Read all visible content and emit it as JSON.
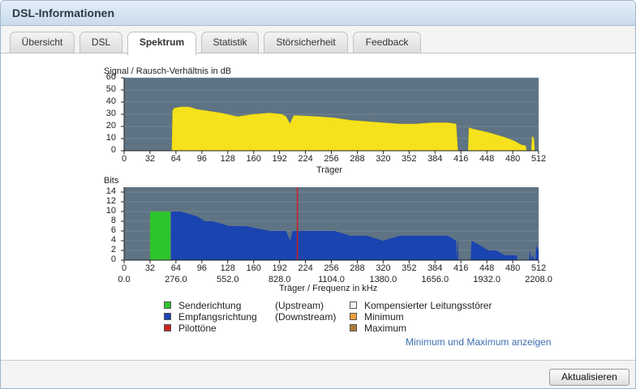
{
  "window": {
    "title": "DSL-Informationen"
  },
  "tabs": [
    {
      "label": "Übersicht",
      "active": false
    },
    {
      "label": "DSL",
      "active": false
    },
    {
      "label": "Spektrum",
      "active": true
    },
    {
      "label": "Statistik",
      "active": false
    },
    {
      "label": "Störsicherheit",
      "active": false
    },
    {
      "label": "Feedback",
      "active": false
    }
  ],
  "colors": {
    "plot_bg": "#5e7384",
    "snr_fill": "#f5e21c",
    "upstream": "#2ec42e",
    "downstream": "#1a44b0",
    "pilot": "#cc2222",
    "compensated": "#f4f4f4",
    "minimum": "#f0a040",
    "maximum": "#b07a3c"
  },
  "chart_data": [
    {
      "type": "area",
      "title": "Signal / Rausch-Verhältnis in dB",
      "xlabel": "Träger",
      "ylabel": "",
      "xlim": [
        0,
        512
      ],
      "ylim": [
        0,
        60
      ],
      "yticks": [
        0,
        10,
        20,
        30,
        40,
        50,
        60
      ],
      "xticks": [
        0,
        32,
        64,
        96,
        128,
        160,
        192,
        224,
        256,
        288,
        320,
        352,
        384,
        416,
        448,
        480,
        512
      ],
      "x": [
        0,
        59,
        60,
        62,
        70,
        80,
        90,
        100,
        120,
        140,
        160,
        180,
        195,
        200,
        205,
        208,
        210,
        240,
        260,
        280,
        300,
        320,
        340,
        360,
        380,
        400,
        410,
        412,
        413,
        425,
        426,
        430,
        450,
        470,
        482,
        490,
        496,
        497,
        503,
        504,
        506,
        507,
        512
      ],
      "y": [
        0,
        0,
        33,
        35,
        36,
        36,
        34,
        33,
        31,
        28,
        30,
        31,
        30,
        28,
        22,
        27,
        29,
        28,
        27,
        25,
        24,
        23,
        22,
        22,
        23,
        23,
        22,
        1,
        0,
        0,
        19,
        18,
        15,
        11,
        8,
        5,
        4,
        0,
        0,
        12,
        10,
        0,
        0
      ]
    },
    {
      "type": "area",
      "title": "Bits",
      "xlabel": "Träger / Frequenz in kHz",
      "ylabel": "",
      "xlim": [
        0,
        512
      ],
      "ylim": [
        0,
        15
      ],
      "yticks": [
        0,
        2,
        4,
        6,
        8,
        10,
        12,
        14
      ],
      "xticks": [
        0,
        32,
        64,
        96,
        128,
        160,
        192,
        224,
        256,
        288,
        320,
        352,
        384,
        416,
        448,
        480,
        512
      ],
      "freq_ticks": [
        "0.0",
        "276.0",
        "552.0",
        "828.0",
        "1104.0",
        "1380.0",
        "1656.0",
        "1932.0",
        "2208.0"
      ],
      "series": [
        {
          "name": "Senderichtung",
          "x": [
            32,
            32,
            57,
            57
          ],
          "y": [
            0,
            10,
            10,
            0
          ]
        },
        {
          "name": "Empfangsrichtung",
          "x": [
            58,
            58,
            70,
            90,
            100,
            110,
            130,
            150,
            180,
            200,
            205,
            208,
            212,
            230,
            260,
            280,
            300,
            320,
            340,
            360,
            380,
            400,
            410,
            411,
            412,
            413,
            414,
            428,
            429,
            440,
            450,
            460,
            470,
            480,
            485,
            486,
            500,
            501,
            503,
            504,
            508,
            509,
            512,
            512
          ],
          "y": [
            0,
            10,
            10,
            9,
            8,
            8,
            7,
            7,
            6,
            6,
            4,
            6,
            6,
            6,
            6,
            5,
            5,
            4,
            5,
            5,
            5,
            5,
            4,
            0,
            5,
            0,
            0,
            0,
            4,
            3,
            2,
            2,
            1,
            1,
            1,
            0,
            0,
            2,
            0,
            1,
            0,
            3,
            2,
            0
          ]
        },
        {
          "name": "Pilottöne",
          "x": [
            214
          ],
          "y": [
            15
          ]
        }
      ]
    }
  ],
  "legend": [
    {
      "label": "Senderichtung",
      "direction": "(Upstream)",
      "color": "#2ec42e"
    },
    {
      "label": "Empfangsrichtung",
      "direction": "(Downstream)",
      "color": "#1a44b0"
    },
    {
      "label": "Pilottöne",
      "direction": "",
      "color": "#cc2222"
    },
    {
      "label": "Kompensierter Leitungsstörer",
      "color": "#f4f4f4"
    },
    {
      "label": "Minimum",
      "color": "#f0a040"
    },
    {
      "label": "Maximum",
      "color": "#b07a3c"
    }
  ],
  "link_label": "Minimum und Maximum anzeigen",
  "button_label": "Aktualisieren"
}
